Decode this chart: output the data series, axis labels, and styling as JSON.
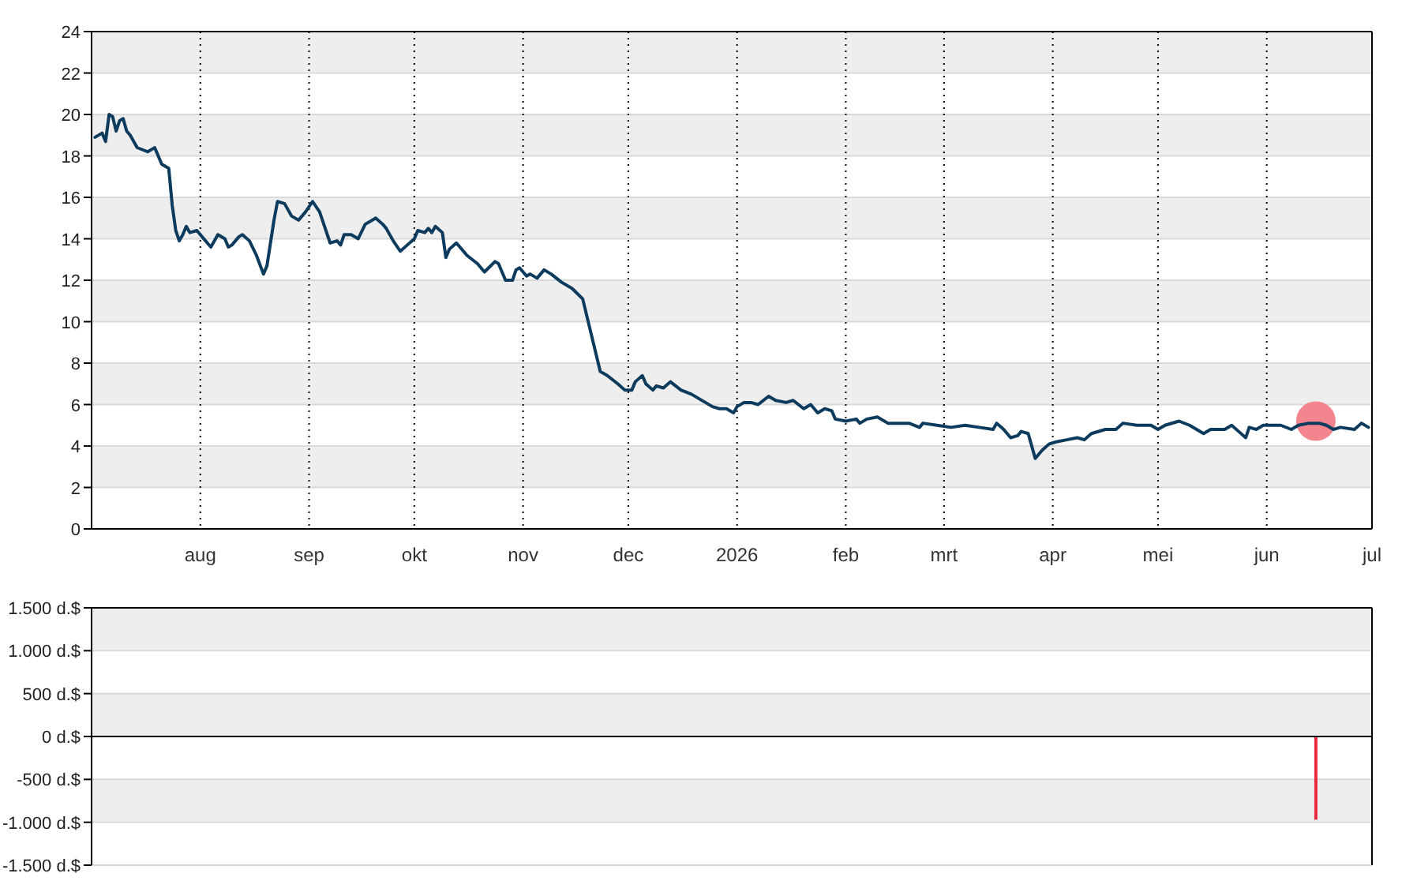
{
  "chart_data": [
    {
      "type": "line",
      "x": [
        "2025-07-02",
        "2025-07-04",
        "2025-07-05",
        "2025-07-06",
        "2025-07-07",
        "2025-07-08",
        "2025-07-09",
        "2025-07-10",
        "2025-07-11",
        "2025-07-12",
        "2025-07-14",
        "2025-07-17",
        "2025-07-18",
        "2025-07-19",
        "2025-07-21",
        "2025-07-23",
        "2025-07-24",
        "2025-07-25",
        "2025-07-26",
        "2025-07-27",
        "2025-07-28",
        "2025-07-29",
        "2025-07-31",
        "2025-08-01",
        "2025-08-03",
        "2025-08-04",
        "2025-08-06",
        "2025-08-08",
        "2025-08-09",
        "2025-08-10",
        "2025-08-12",
        "2025-08-13",
        "2025-08-15",
        "2025-08-17",
        "2025-08-19",
        "2025-08-20",
        "2025-08-22",
        "2025-08-23",
        "2025-08-25",
        "2025-08-27",
        "2025-08-29",
        "2025-08-31",
        "2025-09-02",
        "2025-09-04",
        "2025-09-07",
        "2025-09-09",
        "2025-09-10",
        "2025-09-11",
        "2025-09-13",
        "2025-09-15",
        "2025-09-17",
        "2025-09-20",
        "2025-09-22",
        "2025-09-23",
        "2025-09-25",
        "2025-09-27",
        "2025-09-29",
        "2025-10-01",
        "2025-10-02",
        "2025-10-04",
        "2025-10-05",
        "2025-10-06",
        "2025-10-07",
        "2025-10-09",
        "2025-10-10",
        "2025-10-11",
        "2025-10-13",
        "2025-10-16",
        "2025-10-19",
        "2025-10-21",
        "2025-10-24",
        "2025-10-25",
        "2025-10-27",
        "2025-10-29",
        "2025-10-30",
        "2025-10-31",
        "2025-11-02",
        "2025-11-03",
        "2025-11-05",
        "2025-11-07",
        "2025-11-09",
        "2025-11-12",
        "2025-11-15",
        "2025-11-18",
        "2025-11-20",
        "2025-11-21",
        "2025-11-23",
        "2025-11-25",
        "2025-11-28",
        "2025-11-30",
        "2025-12-02",
        "2025-12-03",
        "2025-12-05",
        "2025-12-06",
        "2025-12-08",
        "2025-12-09",
        "2025-12-11",
        "2025-12-13",
        "2025-12-16",
        "2025-12-19",
        "2025-12-23",
        "2025-12-25",
        "2025-12-27",
        "2025-12-29",
        "2025-12-31",
        "2026-01-01",
        "2026-01-03",
        "2026-01-05",
        "2026-01-07",
        "2026-01-10",
        "2026-01-12",
        "2026-01-15",
        "2026-01-17",
        "2026-01-20",
        "2026-01-22",
        "2026-01-24",
        "2026-01-26",
        "2026-01-28",
        "2026-01-29",
        "2026-02-01",
        "2026-02-04",
        "2026-02-05",
        "2026-02-07",
        "2026-02-10",
        "2026-02-13",
        "2026-02-19",
        "2026-02-22",
        "2026-02-23",
        "2026-02-27",
        "2026-03-03",
        "2026-03-07",
        "2026-03-11",
        "2026-03-15",
        "2026-03-16",
        "2026-03-18",
        "2026-03-20",
        "2026-03-22",
        "2026-03-23",
        "2026-03-25",
        "2026-03-27",
        "2026-03-29",
        "2026-03-31",
        "2026-04-02",
        "2026-04-05",
        "2026-04-08",
        "2026-04-10",
        "2026-04-12",
        "2026-04-16",
        "2026-04-19",
        "2026-04-21",
        "2026-04-25",
        "2026-04-29",
        "2026-05-01",
        "2026-05-03",
        "2026-05-07",
        "2026-05-10",
        "2026-05-14",
        "2026-05-16",
        "2026-05-20",
        "2026-05-22",
        "2026-05-24",
        "2026-05-26",
        "2026-05-27",
        "2026-05-29",
        "2026-05-31",
        "2026-06-05",
        "2026-06-08",
        "2026-06-10",
        "2026-06-13",
        "2026-06-16",
        "2026-06-18",
        "2026-06-20",
        "2026-06-22",
        "2026-06-26",
        "2026-06-28",
        "2026-06-30"
      ],
      "series": [
        {
          "color": "#0d3b5e",
          "values": [
            18.9,
            19.1,
            18.7,
            20.0,
            19.9,
            19.2,
            19.7,
            19.8,
            19.2,
            19.0,
            18.4,
            18.2,
            18.3,
            18.4,
            17.6,
            17.4,
            15.6,
            14.4,
            13.9,
            14.2,
            14.6,
            14.3,
            14.4,
            14.2,
            13.8,
            13.6,
            14.2,
            14.0,
            13.6,
            13.7,
            14.1,
            14.2,
            13.9,
            13.2,
            12.3,
            12.7,
            14.9,
            15.8,
            15.7,
            15.1,
            14.9,
            15.3,
            15.8,
            15.3,
            13.8,
            13.9,
            13.7,
            14.2,
            14.2,
            14.0,
            14.7,
            15.0,
            14.7,
            14.5,
            13.9,
            13.4,
            13.7,
            14.0,
            14.4,
            14.3,
            14.5,
            14.3,
            14.6,
            14.3,
            13.1,
            13.5,
            13.8,
            13.2,
            12.8,
            12.4,
            12.9,
            12.8,
            12.0,
            12.0,
            12.5,
            12.6,
            12.2,
            12.3,
            12.1,
            12.5,
            12.3,
            11.9,
            11.6,
            11.1,
            9.7,
            9.0,
            7.6,
            7.4,
            7.0,
            6.7,
            6.7,
            7.1,
            7.4,
            7.0,
            6.7,
            6.9,
            6.8,
            7.1,
            6.7,
            6.5,
            6.1,
            5.9,
            5.8,
            5.8,
            5.6,
            5.9,
            6.1,
            6.1,
            6.0,
            6.4,
            6.2,
            6.1,
            6.2,
            5.8,
            6.0,
            5.6,
            5.8,
            5.7,
            5.3,
            5.2,
            5.3,
            5.1,
            5.3,
            5.4,
            5.1,
            5.1,
            4.9,
            5.1,
            5.0,
            4.9,
            5.0,
            4.9,
            4.8,
            5.1,
            4.8,
            4.4,
            4.5,
            4.7,
            4.6,
            3.4,
            3.8,
            4.1,
            4.2,
            4.3,
            4.4,
            4.3,
            4.6,
            4.8,
            4.8,
            5.1,
            5.0,
            5.0,
            4.8,
            5.0,
            5.2,
            5.0,
            4.6,
            4.8,
            4.8,
            5.0,
            4.7,
            4.4,
            4.9,
            4.8,
            5.0,
            5.0,
            4.8,
            5.0,
            5.1,
            5.1,
            5.0,
            4.8,
            4.9,
            4.8,
            5.1,
            4.9
          ]
        },
        {
          "type": "scatter",
          "color": "#f4858e",
          "marker": "circle",
          "x": [
            "2026-06-15"
          ],
          "values": [
            5.2
          ]
        }
      ],
      "xlim": [
        "2025-07-01",
        "2026-07-01"
      ],
      "xticks": [
        {
          "value": "2025-08-01",
          "label": "aug"
        },
        {
          "value": "2025-09-01",
          "label": "sep"
        },
        {
          "value": "2025-10-01",
          "label": "okt"
        },
        {
          "value": "2025-11-01",
          "label": "nov"
        },
        {
          "value": "2025-12-01",
          "label": "dec"
        },
        {
          "value": "2026-01-01",
          "label": "2026"
        },
        {
          "value": "2026-02-01",
          "label": "feb"
        },
        {
          "value": "2026-03-01",
          "label": "mrt"
        },
        {
          "value": "2026-04-01",
          "label": "apr"
        },
        {
          "value": "2026-05-01",
          "label": "mei"
        },
        {
          "value": "2026-06-01",
          "label": "jun"
        },
        {
          "value": "2026-07-01",
          "label": "jul"
        }
      ],
      "ylim": [
        0,
        24
      ],
      "yticks": [
        0,
        2,
        4,
        6,
        8,
        10,
        12,
        14,
        16,
        18,
        20,
        22,
        24
      ],
      "grid": true
    },
    {
      "type": "bar",
      "x": [
        "2026-06-15"
      ],
      "values": [
        -970
      ],
      "color": "#e8293f",
      "xlim": [
        "2025-07-01",
        "2026-07-01"
      ],
      "ylim": [
        -1500,
        1500
      ],
      "yticks": [
        {
          "value": 1500,
          "label": "1.500 d.$"
        },
        {
          "value": 1000,
          "label": "1.000 d.$"
        },
        {
          "value": 500,
          "label": "500 d.$"
        },
        {
          "value": 0,
          "label": "0 d.$"
        },
        {
          "value": -500,
          "label": "-500 d.$"
        },
        {
          "value": -1000,
          "label": "-1.000 d.$"
        },
        {
          "value": -1500,
          "label": "-1.500 d.$"
        }
      ],
      "grid": "y",
      "tick_labels": "y",
      "ref_lines": [
        {
          "axis": "y",
          "value": 0,
          "color": "#000000"
        }
      ]
    }
  ]
}
